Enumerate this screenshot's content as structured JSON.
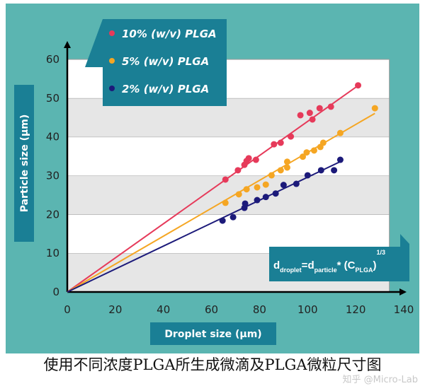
{
  "chart_data": {
    "type": "scatter",
    "xlabel": "Droplet size (μm)",
    "ylabel": "Particle size (μm)",
    "xlim": [
      0,
      140
    ],
    "ylim": [
      0,
      60
    ],
    "xticks": [
      0,
      20,
      40,
      60,
      80,
      100,
      120,
      140
    ],
    "yticks": [
      0,
      10,
      20,
      30,
      40,
      50,
      60
    ],
    "grid": "alternating horizontal bands",
    "legend_position": "top-left",
    "annotation": {
      "d": "d",
      "droplet": "droplet",
      "eq": "=",
      "particle": "particle",
      "star": "* (C",
      "plga": "PLGA",
      "close": ")",
      "exp": "1/3"
    },
    "series": [
      {
        "name": "10% (w/v) PLGA",
        "color": "#e63a5a",
        "fit_slope": 0.44,
        "fit_xmax": 121,
        "x": [
          65.8,
          71,
          73.7,
          74.6,
          75.5,
          78.5,
          86,
          88.8,
          93,
          97,
          100.9,
          102,
          105,
          109.7,
          121
        ],
        "y": [
          29,
          31.4,
          32.8,
          33.8,
          34.5,
          34.1,
          38.1,
          38.5,
          40.1,
          45.6,
          46.2,
          44.5,
          47.4,
          47.8,
          53.3
        ]
      },
      {
        "name": "5% (w/v) PLGA",
        "color": "#f5a623",
        "fit_slope": 0.36,
        "fit_xmax": 128,
        "x": [
          65.8,
          71.4,
          74.6,
          79,
          82.6,
          85,
          88.8,
          91.5,
          91.5,
          98,
          99.6,
          102.7,
          105.3,
          106.5,
          113.6,
          128
        ],
        "y": [
          23,
          25.2,
          26.5,
          27,
          27.7,
          30.1,
          31.4,
          33.6,
          32.1,
          34.9,
          36,
          36.5,
          37.4,
          38.5,
          41,
          47.4
        ]
      },
      {
        "name": "2% (w/v) PLGA",
        "color": "#1c1a7a",
        "fit_slope": 0.296,
        "fit_xmax": 113.6,
        "x": [
          64.6,
          69,
          73.7,
          74,
          79,
          82.6,
          86.7,
          90,
          95.3,
          100,
          105.6,
          111,
          113.6
        ],
        "y": [
          18.4,
          19.3,
          21.7,
          22.8,
          23.7,
          24.5,
          25.4,
          27.6,
          27.9,
          30.1,
          31.4,
          31.4,
          34.1
        ]
      }
    ]
  },
  "colors": {
    "background": "#5bb5b1",
    "box": "#1a7f95",
    "band": "#e6e6e6"
  },
  "caption": "使用不同浓度PLGA所生成微滴及PLGA微粒尺寸图",
  "watermark": "知乎 @Micro-Lab"
}
